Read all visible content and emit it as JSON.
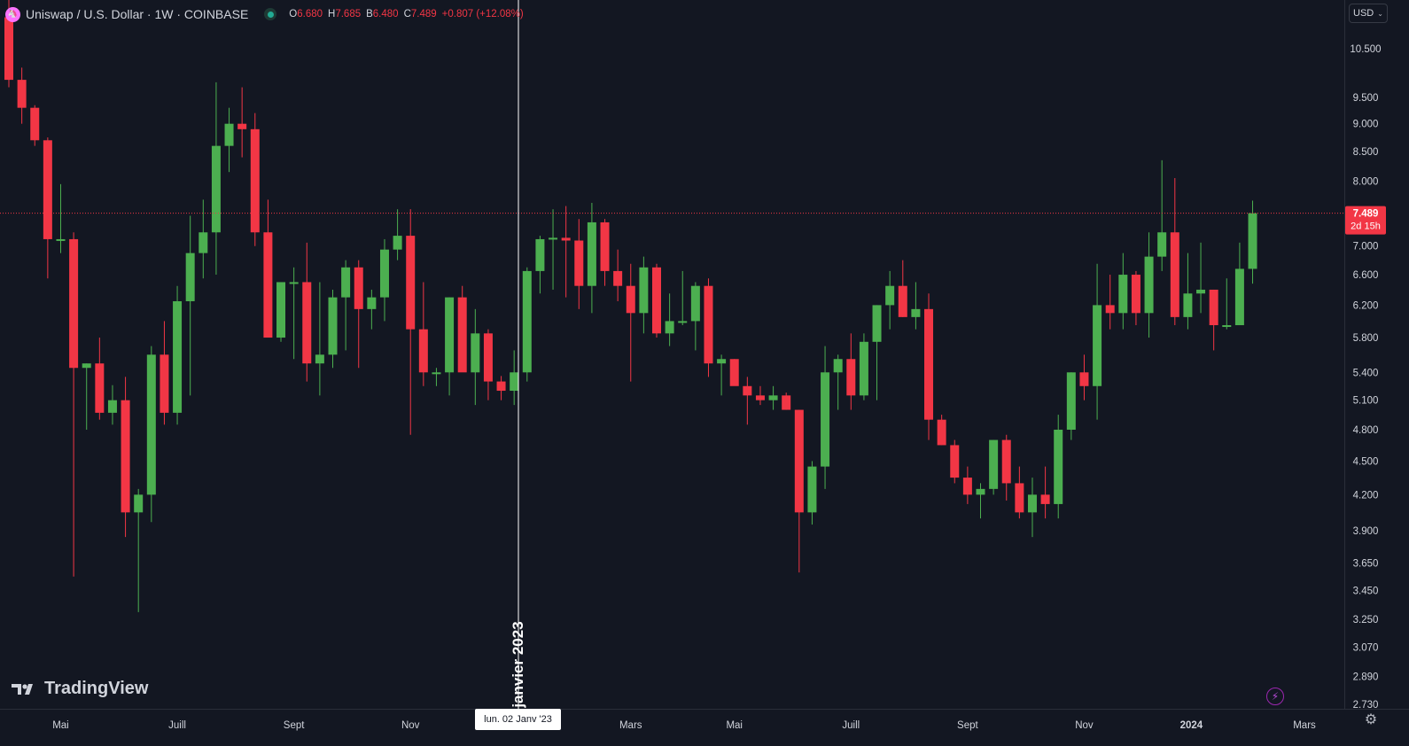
{
  "legend": {
    "symbol_title": "Uniswap / U.S. Dollar · 1W · COINBASE",
    "logo_glyph": "🦄",
    "open_key": "O",
    "open_value": "6.680",
    "high_key": "H",
    "high_value": "7.685",
    "low_key": "B",
    "low_value": "6.480",
    "close_key": "C",
    "close_value": "7.489",
    "change": "+0.807 (+12.08%)"
  },
  "currency": {
    "label": "USD",
    "chevron": "⌄"
  },
  "watermark": {
    "text": "TradingView"
  },
  "crosshair": {
    "date_label": "lun. 02 Janv '23",
    "vertical_text": "janvier 2023"
  },
  "price_tag": {
    "value": "7.489",
    "countdown": "2d 15h"
  },
  "colors": {
    "background": "#131722",
    "up": "#4caf50",
    "down": "#f23645",
    "text": "#d1d4dc",
    "grid": "#2a2e39"
  },
  "icons": {
    "bolt": "⚡",
    "gear": "⚙"
  },
  "chart_data": {
    "type": "candlestick",
    "interval": "1W",
    "scale": "log",
    "y_ticks": [
      "10.500",
      "9.500",
      "9.000",
      "8.500",
      "8.000",
      "7.000",
      "6.600",
      "6.200",
      "5.800",
      "5.400",
      "5.100",
      "4.800",
      "4.500",
      "4.200",
      "3.900",
      "3.650",
      "3.450",
      "3.250",
      "3.070",
      "2.890",
      "2.730"
    ],
    "x_ticks": [
      "Mai",
      "Juill",
      "Sept",
      "Nov",
      "Mars",
      "Mai",
      "Juill",
      "Sept",
      "Nov",
      "2024",
      "Mars"
    ],
    "series": [
      [
        11.2,
        12.4,
        9.7,
        9.85
      ],
      [
        9.85,
        10.1,
        9.0,
        9.3
      ],
      [
        9.3,
        9.35,
        8.6,
        8.7
      ],
      [
        8.7,
        8.75,
        6.55,
        7.1
      ],
      [
        7.1,
        7.95,
        6.9,
        7.1
      ],
      [
        7.1,
        7.2,
        3.55,
        5.45
      ],
      [
        5.45,
        5.5,
        4.8,
        5.5
      ],
      [
        5.5,
        5.8,
        4.9,
        4.97
      ],
      [
        4.97,
        5.26,
        4.85,
        5.1
      ],
      [
        5.1,
        5.35,
        3.85,
        4.05
      ],
      [
        4.05,
        4.25,
        3.3,
        4.2
      ],
      [
        4.2,
        5.7,
        3.97,
        5.6
      ],
      [
        5.6,
        6.0,
        4.85,
        4.97
      ],
      [
        4.97,
        6.45,
        4.85,
        6.25
      ],
      [
        6.25,
        7.45,
        5.15,
        6.9
      ],
      [
        6.9,
        7.7,
        6.55,
        7.2
      ],
      [
        7.2,
        9.8,
        6.6,
        8.6
      ],
      [
        8.6,
        9.3,
        8.15,
        9.0
      ],
      [
        9.0,
        9.7,
        8.4,
        8.9
      ],
      [
        8.9,
        9.2,
        7.0,
        7.2
      ],
      [
        7.2,
        7.7,
        5.8,
        5.8
      ],
      [
        5.8,
        6.2,
        5.75,
        6.5
      ],
      [
        6.5,
        6.7,
        5.55,
        6.5
      ],
      [
        6.5,
        7.05,
        5.3,
        5.5
      ],
      [
        5.5,
        6.5,
        5.15,
        5.6
      ],
      [
        5.6,
        6.4,
        5.45,
        6.3
      ],
      [
        6.3,
        6.8,
        5.65,
        6.7
      ],
      [
        6.7,
        6.8,
        5.45,
        6.15
      ],
      [
        6.15,
        6.4,
        5.9,
        6.3
      ],
      [
        6.3,
        7.1,
        6.0,
        6.95
      ],
      [
        6.95,
        7.55,
        6.8,
        7.15
      ],
      [
        7.15,
        7.55,
        4.75,
        5.9
      ],
      [
        5.9,
        6.5,
        5.25,
        5.4
      ],
      [
        5.4,
        5.45,
        5.25,
        5.4
      ],
      [
        5.4,
        6.3,
        5.15,
        6.3
      ],
      [
        6.3,
        6.45,
        5.7,
        5.4
      ],
      [
        5.4,
        6.15,
        5.05,
        5.85
      ],
      [
        5.85,
        5.9,
        5.1,
        5.3
      ],
      [
        5.3,
        5.36,
        5.1,
        5.2
      ],
      [
        5.2,
        5.65,
        5.05,
        5.4
      ],
      [
        5.4,
        6.7,
        5.3,
        6.65
      ],
      [
        6.65,
        7.15,
        6.35,
        7.1
      ],
      [
        7.1,
        7.55,
        6.4,
        7.12
      ],
      [
        7.12,
        7.6,
        6.3,
        7.08
      ],
      [
        7.08,
        7.4,
        6.15,
        6.45
      ],
      [
        6.45,
        7.65,
        6.1,
        7.35
      ],
      [
        7.35,
        7.4,
        6.45,
        6.65
      ],
      [
        6.65,
        6.95,
        6.25,
        6.45
      ],
      [
        6.45,
        6.75,
        5.3,
        6.1
      ],
      [
        6.1,
        6.85,
        5.85,
        6.7
      ],
      [
        6.7,
        6.75,
        5.8,
        5.85
      ],
      [
        5.85,
        6.35,
        5.7,
        6.0
      ],
      [
        6.0,
        6.65,
        5.95,
        6.0
      ],
      [
        6.0,
        6.5,
        5.65,
        6.45
      ],
      [
        6.45,
        6.55,
        5.35,
        5.5
      ],
      [
        5.5,
        5.6,
        5.15,
        5.55
      ],
      [
        5.55,
        5.55,
        5.3,
        5.25
      ],
      [
        5.25,
        5.35,
        4.85,
        5.15
      ],
      [
        5.15,
        5.25,
        5.05,
        5.1
      ],
      [
        5.1,
        5.25,
        5.0,
        5.15
      ],
      [
        5.15,
        5.18,
        5.0,
        5.0
      ],
      [
        5.0,
        5.0,
        3.58,
        4.05
      ],
      [
        4.05,
        4.5,
        3.95,
        4.45
      ],
      [
        4.45,
        5.7,
        4.25,
        5.4
      ],
      [
        5.4,
        5.6,
        5.0,
        5.55
      ],
      [
        5.55,
        5.85,
        5.0,
        5.15
      ],
      [
        5.15,
        5.85,
        5.1,
        5.75
      ],
      [
        5.75,
        6.2,
        5.1,
        6.2
      ],
      [
        6.2,
        6.65,
        5.9,
        6.45
      ],
      [
        6.45,
        6.8,
        6.05,
        6.05
      ],
      [
        6.05,
        6.5,
        5.9,
        6.15
      ],
      [
        6.15,
        6.35,
        4.7,
        4.9
      ],
      [
        4.9,
        4.95,
        4.65,
        4.65
      ],
      [
        4.65,
        4.7,
        4.3,
        4.35
      ],
      [
        4.35,
        4.45,
        4.12,
        4.2
      ],
      [
        4.2,
        4.3,
        4.0,
        4.25
      ],
      [
        4.25,
        4.7,
        4.2,
        4.7
      ],
      [
        4.7,
        4.75,
        4.15,
        4.3
      ],
      [
        4.3,
        4.45,
        4.0,
        4.05
      ],
      [
        4.05,
        4.35,
        3.85,
        4.2
      ],
      [
        4.2,
        4.45,
        4.0,
        4.12
      ],
      [
        4.12,
        4.95,
        4.0,
        4.8
      ],
      [
        4.8,
        5.4,
        4.7,
        5.4
      ],
      [
        5.4,
        5.6,
        5.1,
        5.25
      ],
      [
        5.25,
        6.75,
        4.9,
        6.2
      ],
      [
        6.2,
        6.6,
        5.9,
        6.1
      ],
      [
        6.1,
        6.9,
        5.9,
        6.6
      ],
      [
        6.6,
        6.65,
        5.95,
        6.1
      ],
      [
        6.1,
        7.2,
        5.8,
        6.85
      ],
      [
        6.85,
        8.35,
        6.65,
        7.2
      ],
      [
        7.2,
        8.05,
        5.95,
        6.05
      ],
      [
        6.05,
        6.9,
        5.9,
        6.35
      ],
      [
        6.35,
        7.05,
        6.1,
        6.4
      ],
      [
        6.4,
        6.4,
        5.65,
        5.95
      ],
      [
        5.95,
        6.55,
        5.9,
        5.95
      ],
      [
        5.95,
        7.05,
        5.95,
        6.68
      ],
      [
        6.68,
        7.685,
        6.48,
        7.489
      ]
    ]
  }
}
